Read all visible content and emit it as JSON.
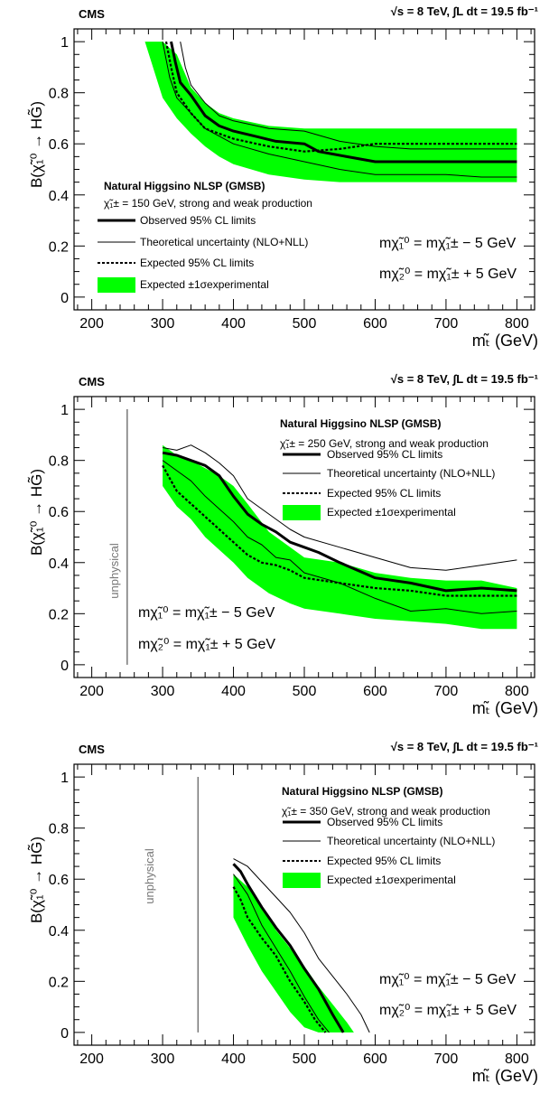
{
  "common": {
    "cms_label": "CMS",
    "energy_label": "√s = 8 TeV,  ∫L dt = 19.5 fb⁻¹",
    "ylabel": "B(χ̃₁⁰ → HG̃)",
    "xlabel": "mₜ̃ (GeV)",
    "legend_title": "Natural Higgsino NLSP (GMSB)",
    "legend_observed": "Observed 95% CL limits",
    "legend_theory": "Theoretical uncertainty (NLO+NLL)",
    "legend_expected": "Expected 95% CL limits",
    "legend_band": "Expected ±1σexperimental",
    "relation_1": "mχ̃₁⁰ = mχ̃₁± − 5 GeV",
    "relation_2": "mχ̃₂⁰ = mχ̃₁± + 5 GeV",
    "unphysical_label": "unphysical",
    "colors": {
      "band": "#00ff00",
      "lines": "#000000",
      "unphysical": "#777777"
    }
  },
  "chart_data": [
    {
      "type": "line",
      "chargino_text": "χ̃₁± = 150 GeV, strong and weak production",
      "xlim": [
        175,
        825
      ],
      "ylim": [
        -0.05,
        1.05
      ],
      "xticks": [
        200,
        300,
        400,
        500,
        600,
        700,
        800
      ],
      "yticks": [
        0,
        0.2,
        0.4,
        0.6,
        0.8,
        1
      ],
      "unphysical_x": null,
      "band": {
        "x": [
          275,
          300,
          320,
          340,
          360,
          380,
          400,
          450,
          500,
          550,
          600,
          650,
          700,
          750,
          800
        ],
        "upper": [
          1.0,
          1.0,
          0.95,
          0.82,
          0.76,
          0.72,
          0.7,
          0.67,
          0.66,
          0.66,
          0.66,
          0.66,
          0.66,
          0.66,
          0.66
        ],
        "lower": [
          1.0,
          0.78,
          0.7,
          0.64,
          0.59,
          0.55,
          0.52,
          0.48,
          0.46,
          0.45,
          0.45,
          0.45,
          0.45,
          0.45,
          0.45
        ]
      },
      "series": [
        {
          "name": "Observed 95% CL limits",
          "style": "thick",
          "x": [
            312,
            318,
            325,
            340,
            360,
            380,
            400,
            430,
            460,
            500,
            520,
            540,
            560,
            600,
            650,
            700,
            750,
            800
          ],
          "values": [
            1.0,
            0.92,
            0.84,
            0.79,
            0.71,
            0.67,
            0.65,
            0.63,
            0.61,
            0.6,
            0.57,
            0.56,
            0.55,
            0.53,
            0.53,
            0.53,
            0.53,
            0.53
          ]
        },
        {
          "name": "Theoretical uncertainty (NLO+NLL)",
          "style": "thin",
          "x": [
            325,
            332,
            340,
            360,
            380,
            400,
            450,
            500,
            550,
            600,
            650,
            700,
            750,
            800
          ],
          "values": [
            1.0,
            0.9,
            0.83,
            0.76,
            0.71,
            0.69,
            0.66,
            0.65,
            0.61,
            0.59,
            0.58,
            0.58,
            0.58,
            0.58
          ]
        },
        {
          "name": "",
          "style": "thin",
          "x": [
            300,
            310,
            320,
            340,
            360,
            400,
            450,
            500,
            550,
            600,
            650,
            700,
            750,
            800
          ],
          "values": [
            1.0,
            0.86,
            0.78,
            0.72,
            0.66,
            0.6,
            0.56,
            0.53,
            0.5,
            0.48,
            0.48,
            0.48,
            0.47,
            0.47
          ]
        },
        {
          "name": "Expected 95% CL limits",
          "style": "dashed",
          "x": [
            305,
            312,
            320,
            340,
            360,
            400,
            450,
            500,
            550,
            600,
            650,
            700,
            750,
            800
          ],
          "values": [
            1.0,
            0.9,
            0.8,
            0.72,
            0.66,
            0.62,
            0.59,
            0.57,
            0.58,
            0.6,
            0.6,
            0.6,
            0.6,
            0.6
          ]
        }
      ]
    },
    {
      "type": "line",
      "chargino_text": "χ̃₁± = 250 GeV, strong and weak production",
      "xlim": [
        175,
        825
      ],
      "ylim": [
        -0.05,
        1.05
      ],
      "xticks": [
        200,
        300,
        400,
        500,
        600,
        700,
        800
      ],
      "yticks": [
        0,
        0.2,
        0.4,
        0.6,
        0.8,
        1
      ],
      "unphysical_x": 250,
      "band": {
        "x": [
          300,
          320,
          340,
          360,
          380,
          400,
          420,
          450,
          480,
          500,
          550,
          600,
          650,
          700,
          750,
          800
        ],
        "upper": [
          0.86,
          0.82,
          0.8,
          0.77,
          0.74,
          0.7,
          0.63,
          0.52,
          0.46,
          0.42,
          0.4,
          0.36,
          0.34,
          0.33,
          0.33,
          0.3
        ],
        "lower": [
          0.7,
          0.62,
          0.57,
          0.5,
          0.45,
          0.4,
          0.34,
          0.28,
          0.24,
          0.22,
          0.2,
          0.18,
          0.17,
          0.16,
          0.14,
          0.14
        ]
      },
      "series": [
        {
          "name": "Observed 95% CL limits",
          "style": "thick",
          "x": [
            300,
            320,
            340,
            360,
            380,
            400,
            420,
            440,
            460,
            480,
            500,
            520,
            550,
            600,
            650,
            700,
            750,
            800
          ],
          "values": [
            0.83,
            0.82,
            0.8,
            0.78,
            0.74,
            0.66,
            0.59,
            0.55,
            0.52,
            0.48,
            0.46,
            0.44,
            0.4,
            0.34,
            0.32,
            0.29,
            0.3,
            0.29
          ]
        },
        {
          "name": "Theoretical uncertainty (NLO+NLL)",
          "style": "thin",
          "x": [
            300,
            320,
            340,
            360,
            380,
            400,
            420,
            450,
            480,
            500,
            550,
            600,
            650,
            700,
            750,
            800
          ],
          "values": [
            0.85,
            0.84,
            0.86,
            0.83,
            0.79,
            0.74,
            0.65,
            0.59,
            0.53,
            0.5,
            0.46,
            0.42,
            0.38,
            0.37,
            0.39,
            0.41
          ]
        },
        {
          "name": "",
          "style": "thin",
          "x": [
            300,
            320,
            340,
            360,
            380,
            400,
            420,
            440,
            460,
            480,
            500,
            550,
            600,
            650,
            700,
            750,
            800
          ],
          "values": [
            0.8,
            0.76,
            0.72,
            0.66,
            0.61,
            0.56,
            0.5,
            0.47,
            0.42,
            0.41,
            0.36,
            0.32,
            0.26,
            0.21,
            0.22,
            0.2,
            0.21
          ]
        },
        {
          "name": "Expected 95% CL limits",
          "style": "dashed",
          "x": [
            300,
            310,
            320,
            340,
            360,
            380,
            400,
            420,
            440,
            460,
            480,
            500,
            550,
            600,
            650,
            700,
            750,
            800
          ],
          "values": [
            0.78,
            0.73,
            0.68,
            0.63,
            0.58,
            0.53,
            0.48,
            0.43,
            0.4,
            0.39,
            0.37,
            0.34,
            0.32,
            0.3,
            0.29,
            0.27,
            0.27,
            0.27
          ]
        }
      ]
    },
    {
      "type": "line",
      "chargino_text": "χ̃₁± = 350 GeV, strong and weak production",
      "xlim": [
        175,
        825
      ],
      "ylim": [
        -0.05,
        1.05
      ],
      "xticks": [
        200,
        300,
        400,
        500,
        600,
        700,
        800
      ],
      "yticks": [
        0,
        0.2,
        0.4,
        0.6,
        0.8,
        1
      ],
      "unphysical_x": 350,
      "band": {
        "x": [
          400,
          420,
          440,
          460,
          480,
          500,
          520,
          540,
          560,
          570
        ],
        "upper": [
          0.62,
          0.57,
          0.49,
          0.4,
          0.33,
          0.26,
          0.18,
          0.11,
          0.04,
          0.0
        ],
        "lower": [
          0.45,
          0.34,
          0.24,
          0.16,
          0.08,
          0.02,
          0.0,
          0.0,
          0.0,
          0.0
        ]
      },
      "series": [
        {
          "name": "Observed 95% CL limits",
          "style": "thick",
          "x": [
            400,
            410,
            420,
            440,
            460,
            480,
            500,
            520,
            540,
            555
          ],
          "values": [
            0.66,
            0.63,
            0.58,
            0.49,
            0.41,
            0.34,
            0.25,
            0.17,
            0.07,
            0.0
          ]
        },
        {
          "name": "Theoretical uncertainty (NLO+NLL)",
          "style": "thin",
          "x": [
            400,
            420,
            440,
            460,
            480,
            500,
            520,
            540,
            560,
            580,
            592
          ],
          "values": [
            0.68,
            0.65,
            0.59,
            0.53,
            0.47,
            0.39,
            0.29,
            0.22,
            0.15,
            0.07,
            0.0
          ]
        },
        {
          "name": "",
          "style": "thin",
          "x": [
            400,
            420,
            440,
            460,
            480,
            500,
            520,
            535
          ],
          "values": [
            0.62,
            0.54,
            0.42,
            0.33,
            0.24,
            0.14,
            0.05,
            0.0
          ]
        },
        {
          "name": "Expected 95% CL limits",
          "style": "dashed",
          "x": [
            400,
            410,
            420,
            440,
            460,
            480,
            500,
            515,
            530
          ],
          "values": [
            0.57,
            0.52,
            0.45,
            0.37,
            0.3,
            0.2,
            0.12,
            0.05,
            0.0
          ]
        }
      ]
    }
  ]
}
